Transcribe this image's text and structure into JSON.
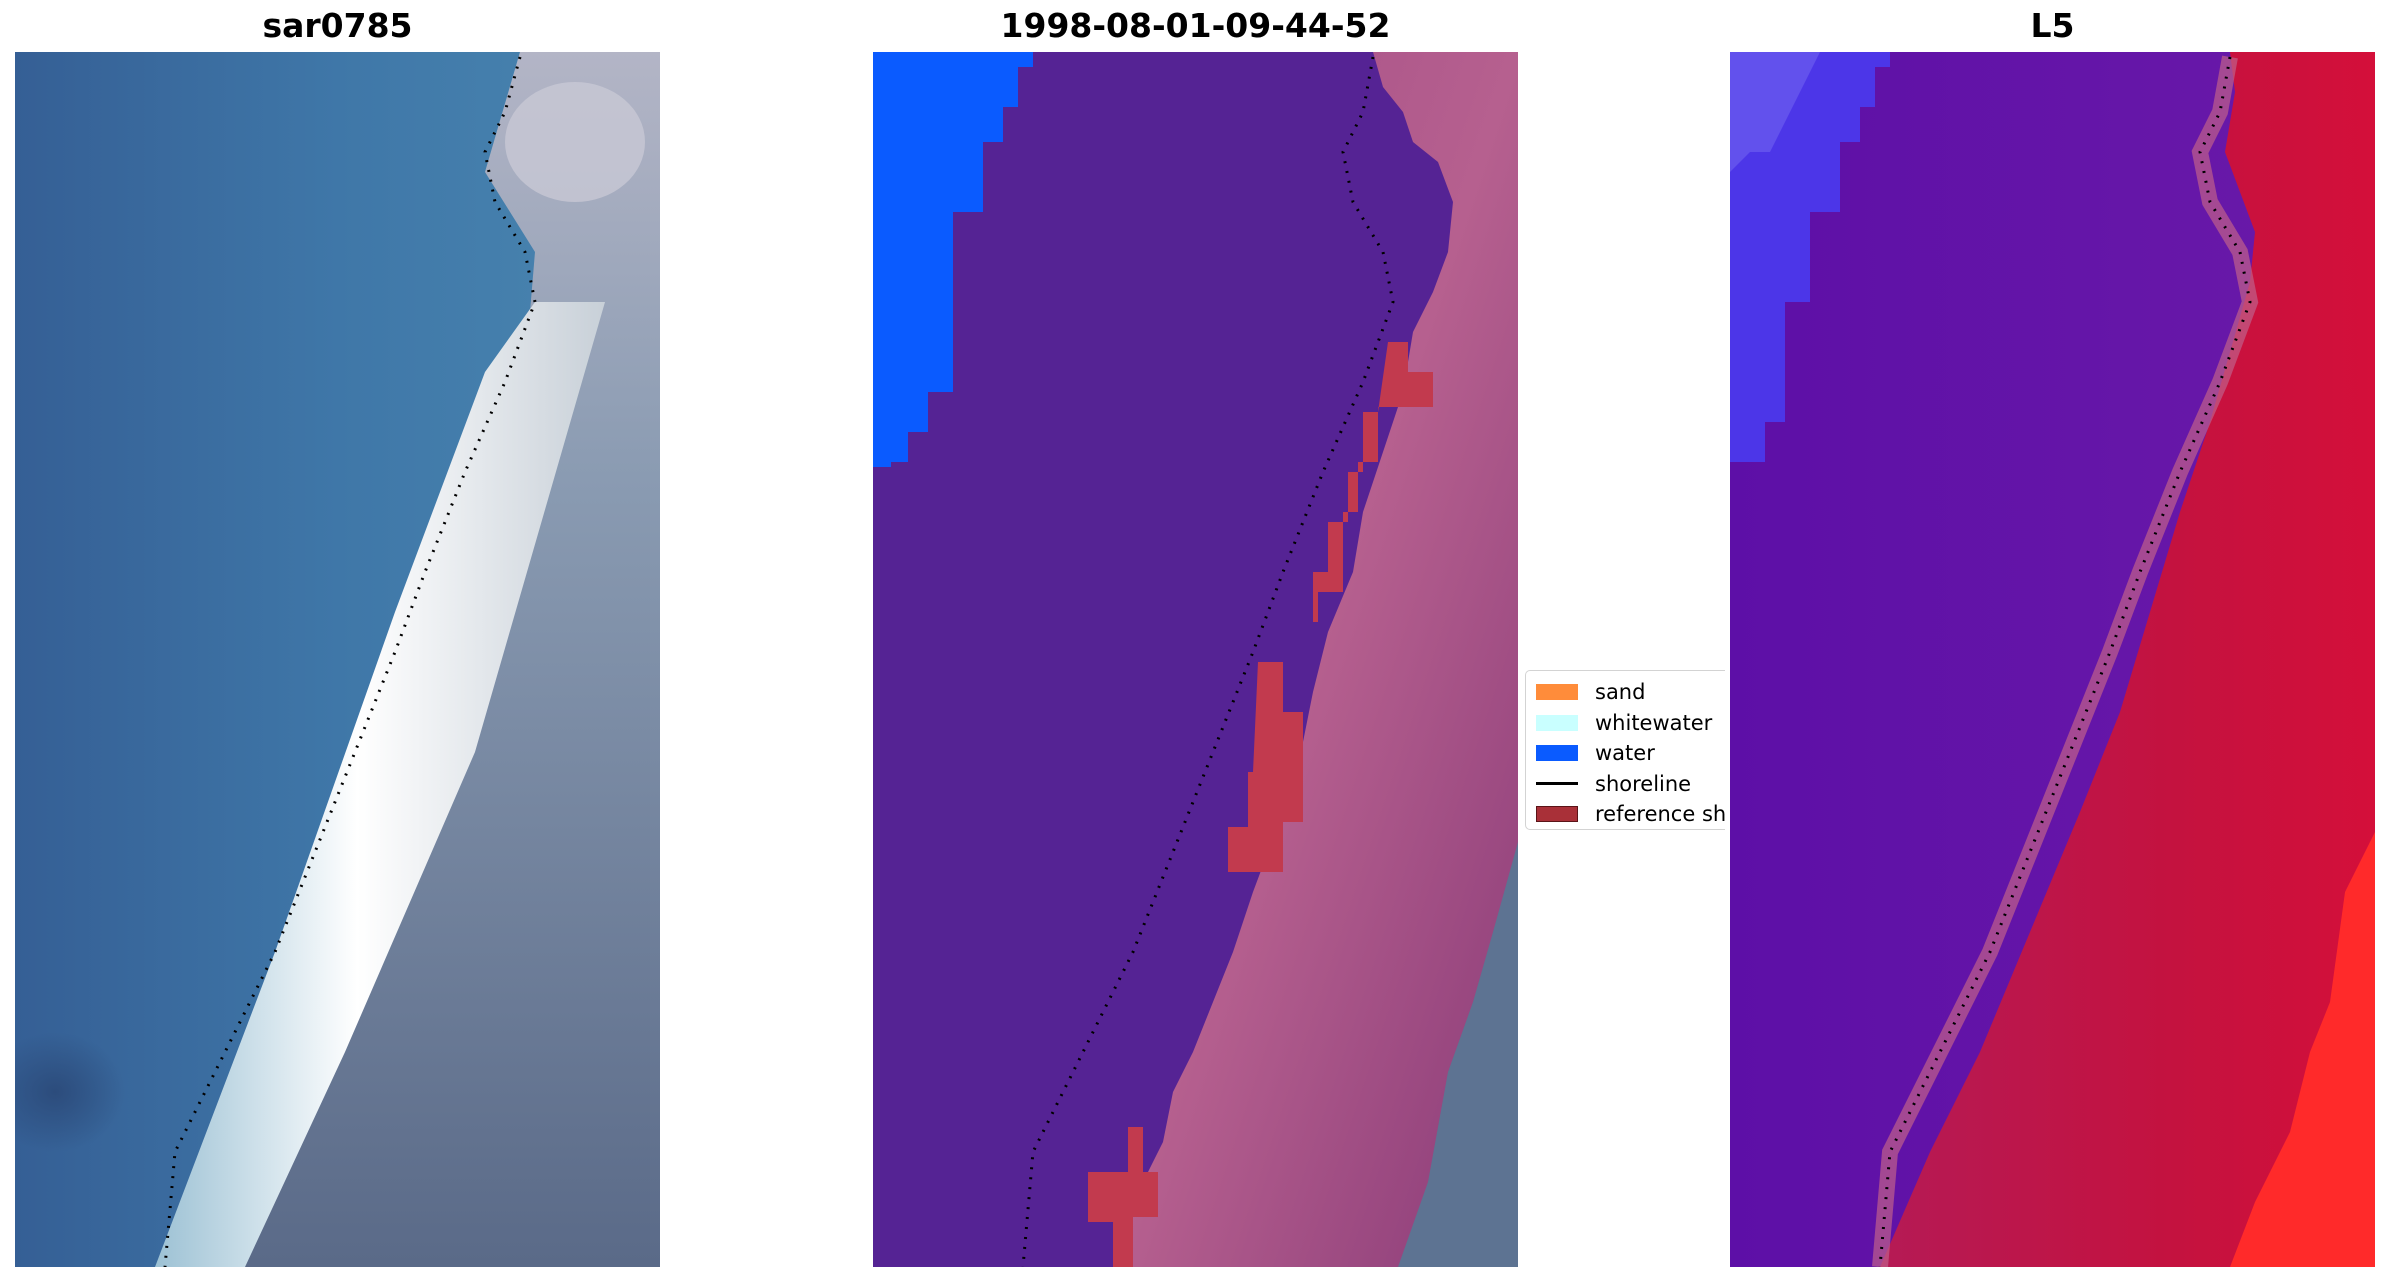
{
  "panels": [
    {
      "title": "sar0785",
      "image": "satellite-rgb-composite"
    },
    {
      "title": "1998-08-01-09-44-52",
      "image": "classified-image"
    },
    {
      "title": "L5",
      "image": "mndwi-colormap"
    }
  ],
  "legend": {
    "items": [
      {
        "label": "sand",
        "color": "#ff8c3a",
        "kind": "patch"
      },
      {
        "label": "whitewater",
        "color": "#c9ffff",
        "kind": "patch"
      },
      {
        "label": "water",
        "color": "#0a5bff",
        "kind": "patch"
      },
      {
        "label": "shoreline",
        "color": "#000000",
        "kind": "line"
      },
      {
        "label": "reference shoreline",
        "color": "#a93038",
        "kind": "patch"
      }
    ]
  },
  "colors": {
    "ocean": "#3f74a6",
    "surf": "#f5f8f8",
    "land_grey": "#6d7d95",
    "classified_water_class": "#552394",
    "classified_land": "#b55a90",
    "classified_reference": "#c23a4e",
    "mndwi_water": "#6018a8",
    "mndwi_land": "#c4123f"
  }
}
